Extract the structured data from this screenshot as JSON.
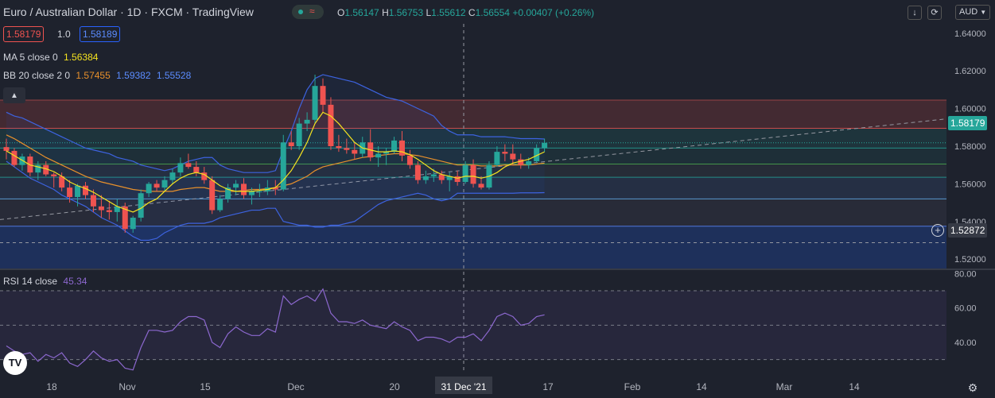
{
  "header": {
    "title": "Euro / Australian Dollar · 1D · FXCM · TradingView",
    "ohlc": {
      "o_label": "O",
      "o": "1.56147",
      "h_label": "H",
      "h": "1.56753",
      "l_label": "L",
      "l": "1.55612",
      "c_label": "C",
      "c": "1.56554",
      "change": "+0.00407 (+0.26%)"
    },
    "sell_price": "1.58179",
    "spread": "1.0",
    "buy_price": "1.58189",
    "currency_selector": "AUD"
  },
  "indicators": {
    "ma": {
      "label": "MA 5 close 0",
      "value": "1.56384"
    },
    "bb": {
      "label": "BB 20 close 2 0",
      "basis": "1.57455",
      "upper": "1.59382",
      "lower": "1.55528"
    },
    "rsi": {
      "label": "RSI 14 close",
      "value": "45.34"
    }
  },
  "price_axis": {
    "ticks": [
      1.64,
      1.62,
      1.6,
      1.58,
      1.56,
      1.54,
      1.52
    ],
    "tick_labels": [
      "1.64000",
      "1.62000",
      "1.60000",
      "1.58000",
      "1.56000",
      "1.54000",
      "1.52000"
    ],
    "current_price": "1.58179",
    "crosshair_price": "1.52872"
  },
  "rsi_axis": {
    "ticks": [
      80,
      60,
      40
    ],
    "tick_labels": [
      "80.00",
      "60.00",
      "40.00"
    ]
  },
  "time_axis": {
    "labels": [
      "18",
      "Nov",
      "15",
      "Dec",
      "20",
      "31 Dec '21",
      "17",
      "Feb",
      "14",
      "Mar",
      "14"
    ]
  },
  "colors": {
    "bg": "#1e222d",
    "up": "#26a69a",
    "down": "#ef5350",
    "ma": "#f5e31f",
    "bb_basis": "#e8902b",
    "bb_band": "#3d63e0",
    "rsi": "#8c68cf",
    "label_sell": "#ef5350",
    "label_buy": "#2962ff",
    "current_price": "#26a69a"
  },
  "chart_data": {
    "type": "candlestick",
    "price_range": [
      1.515,
      1.645
    ],
    "rsi_range": [
      22,
      82
    ],
    "candles": [
      [
        1.5795,
        1.584,
        1.573,
        1.5775
      ],
      [
        1.5775,
        1.579,
        1.569,
        1.57
      ],
      [
        1.57,
        1.576,
        1.567,
        1.5745
      ],
      [
        1.5745,
        1.576,
        1.564,
        1.566
      ],
      [
        1.566,
        1.572,
        1.562,
        1.57
      ],
      [
        1.57,
        1.572,
        1.564,
        1.565
      ],
      [
        1.565,
        1.566,
        1.558,
        1.564
      ],
      [
        1.564,
        1.566,
        1.556,
        1.558
      ],
      [
        1.558,
        1.562,
        1.55,
        1.553
      ],
      [
        1.553,
        1.56,
        1.548,
        1.559
      ],
      [
        1.559,
        1.561,
        1.552,
        1.554
      ],
      [
        1.554,
        1.557,
        1.545,
        1.548
      ],
      [
        1.548,
        1.554,
        1.542,
        1.546
      ],
      [
        1.546,
        1.551,
        1.541,
        1.545
      ],
      [
        1.545,
        1.552,
        1.54,
        1.548
      ],
      [
        1.548,
        1.55,
        1.534,
        1.536
      ],
      [
        1.536,
        1.543,
        1.534,
        1.542
      ],
      [
        1.542,
        1.557,
        1.54,
        1.555
      ],
      [
        1.555,
        1.561,
        1.553,
        1.56
      ],
      [
        1.56,
        1.562,
        1.556,
        1.558
      ],
      [
        1.558,
        1.564,
        1.556,
        1.562
      ],
      [
        1.562,
        1.568,
        1.56,
        1.566
      ],
      [
        1.566,
        1.574,
        1.564,
        1.571
      ],
      [
        1.571,
        1.576,
        1.568,
        1.569
      ],
      [
        1.569,
        1.572,
        1.564,
        1.566
      ],
      [
        1.566,
        1.569,
        1.56,
        1.562
      ],
      [
        1.562,
        1.564,
        1.544,
        1.546
      ],
      [
        1.546,
        1.554,
        1.545,
        1.552
      ],
      [
        1.552,
        1.56,
        1.55,
        1.558
      ],
      [
        1.558,
        1.562,
        1.554,
        1.56
      ],
      [
        1.56,
        1.563,
        1.552,
        1.554
      ],
      [
        1.554,
        1.558,
        1.549,
        1.556
      ],
      [
        1.556,
        1.56,
        1.553,
        1.556
      ],
      [
        1.556,
        1.562,
        1.554,
        1.558
      ],
      [
        1.558,
        1.562,
        1.554,
        1.557
      ],
      [
        1.557,
        1.586,
        1.556,
        1.582
      ],
      [
        1.582,
        1.588,
        1.578,
        1.58
      ],
      [
        1.58,
        1.595,
        1.578,
        1.592
      ],
      [
        1.592,
        1.598,
        1.588,
        1.594
      ],
      [
        1.594,
        1.618,
        1.592,
        1.612
      ],
      [
        1.612,
        1.616,
        1.598,
        1.602
      ],
      [
        1.602,
        1.606,
        1.578,
        1.58
      ],
      [
        1.58,
        1.586,
        1.577,
        1.579
      ],
      [
        1.579,
        1.584,
        1.576,
        1.578
      ],
      [
        1.578,
        1.582,
        1.573,
        1.576
      ],
      [
        1.576,
        1.585,
        1.574,
        1.582
      ],
      [
        1.582,
        1.589,
        1.572,
        1.574
      ],
      [
        1.574,
        1.58,
        1.569,
        1.576
      ],
      [
        1.576,
        1.579,
        1.57,
        1.577
      ],
      [
        1.577,
        1.585,
        1.576,
        1.583
      ],
      [
        1.583,
        1.588,
        1.572,
        1.575
      ],
      [
        1.575,
        1.578,
        1.568,
        1.57
      ],
      [
        1.57,
        1.572,
        1.56,
        1.562
      ],
      [
        1.562,
        1.567,
        1.56,
        1.564
      ],
      [
        1.564,
        1.568,
        1.561,
        1.565
      ],
      [
        1.565,
        1.567,
        1.56,
        1.562
      ],
      [
        1.562,
        1.566,
        1.556,
        1.564
      ],
      [
        1.564,
        1.567,
        1.559,
        1.561
      ],
      [
        1.561,
        1.572,
        1.56,
        1.57
      ],
      [
        1.57,
        1.573,
        1.558,
        1.56
      ],
      [
        1.56,
        1.564,
        1.557,
        1.558
      ],
      [
        1.558,
        1.572,
        1.557,
        1.57
      ],
      [
        1.57,
        1.58,
        1.569,
        1.577
      ],
      [
        1.577,
        1.581,
        1.572,
        1.576
      ],
      [
        1.576,
        1.581,
        1.57,
        1.573
      ],
      [
        1.573,
        1.576,
        1.568,
        1.57
      ],
      [
        1.57,
        1.574,
        1.568,
        1.572
      ],
      [
        1.572,
        1.581,
        1.571,
        1.579
      ],
      [
        1.579,
        1.584,
        1.577,
        1.5818
      ]
    ],
    "ma5": [
      1.5775,
      1.575,
      1.5725,
      1.57,
      1.569,
      1.568,
      1.5665,
      1.564,
      1.561,
      1.559,
      1.5575,
      1.5555,
      1.553,
      1.5505,
      1.548,
      1.5465,
      1.545,
      1.547,
      1.55,
      1.552,
      1.556,
      1.56,
      1.563,
      1.565,
      1.566,
      1.565,
      1.562,
      1.559,
      1.557,
      1.556,
      1.556,
      1.556,
      1.5565,
      1.557,
      1.558,
      1.562,
      1.567,
      1.574,
      1.582,
      1.592,
      1.598,
      1.596,
      1.592,
      1.587,
      1.582,
      1.579,
      1.578,
      1.577,
      1.577,
      1.5775,
      1.577,
      1.5755,
      1.573,
      1.57,
      1.567,
      1.565,
      1.564,
      1.563,
      1.564,
      1.564,
      1.563,
      1.564,
      1.566,
      1.569,
      1.571,
      1.572,
      1.573,
      1.575,
      1.577
    ],
    "bb_basis": [
      1.586,
      1.584,
      1.5815,
      1.579,
      1.5765,
      1.574,
      1.572,
      1.57,
      1.568,
      1.566,
      1.564,
      1.5625,
      1.561,
      1.56,
      1.559,
      1.558,
      1.557,
      1.5565,
      1.556,
      1.556,
      1.556,
      1.556,
      1.557,
      1.5575,
      1.558,
      1.558,
      1.557,
      1.556,
      1.556,
      1.556,
      1.5565,
      1.557,
      1.557,
      1.5575,
      1.558,
      1.559,
      1.56,
      1.562,
      1.564,
      1.567,
      1.569,
      1.57,
      1.571,
      1.572,
      1.573,
      1.574,
      1.5745,
      1.575,
      1.5755,
      1.576,
      1.576,
      1.5755,
      1.575,
      1.574,
      1.573,
      1.572,
      1.571,
      1.57,
      1.57,
      1.57,
      1.5695,
      1.5695,
      1.5695,
      1.57,
      1.57,
      1.57,
      1.57,
      1.5705,
      1.571
    ],
    "bb_upper": [
      1.598,
      1.596,
      1.595,
      1.593,
      1.591,
      1.589,
      1.587,
      1.585,
      1.583,
      1.581,
      1.579,
      1.578,
      1.577,
      1.576,
      1.574,
      1.573,
      1.572,
      1.57,
      1.569,
      1.568,
      1.567,
      1.568,
      1.57,
      1.572,
      1.573,
      1.574,
      1.574,
      1.57,
      1.568,
      1.567,
      1.566,
      1.566,
      1.566,
      1.566,
      1.567,
      1.578,
      1.588,
      1.6,
      1.61,
      1.616,
      1.618,
      1.617,
      1.616,
      1.615,
      1.614,
      1.612,
      1.61,
      1.608,
      1.606,
      1.605,
      1.604,
      1.602,
      1.6,
      1.598,
      1.596,
      1.591,
      1.588,
      1.586,
      1.586,
      1.586,
      1.585,
      1.585,
      1.585,
      1.585,
      1.5845,
      1.584,
      1.584,
      1.584,
      1.5838
    ],
    "bb_lower": [
      1.572,
      1.569,
      1.566,
      1.563,
      1.561,
      1.559,
      1.557,
      1.554,
      1.552,
      1.55,
      1.548,
      1.545,
      1.542,
      1.54,
      1.538,
      1.535,
      1.532,
      1.53,
      1.53,
      1.531,
      1.534,
      1.536,
      1.538,
      1.539,
      1.539,
      1.539,
      1.54,
      1.542,
      1.543,
      1.544,
      1.545,
      1.546,
      1.546,
      1.547,
      1.547,
      1.54,
      1.539,
      1.538,
      1.538,
      1.537,
      1.537,
      1.538,
      1.538,
      1.539,
      1.54,
      1.543,
      1.546,
      1.549,
      1.551,
      1.552,
      1.553,
      1.554,
      1.555,
      1.554,
      1.552,
      1.551,
      1.552,
      1.555,
      1.555,
      1.555,
      1.555,
      1.555,
      1.555,
      1.555,
      1.555,
      1.5552,
      1.5552,
      1.5552,
      1.5553
    ],
    "rsi": [
      38,
      35,
      33,
      34,
      29,
      33,
      31,
      34,
      28,
      26,
      30,
      35,
      31,
      29,
      30,
      25,
      24,
      37,
      47,
      47,
      46,
      47,
      52,
      55,
      55,
      53,
      40,
      37,
      45,
      49,
      46,
      44,
      44,
      48,
      46,
      67,
      62,
      65,
      67,
      64,
      71,
      57,
      52,
      52,
      51,
      53,
      50,
      49,
      48,
      52,
      49,
      47,
      41,
      43,
      43,
      42,
      40,
      43,
      43,
      45,
      41,
      47,
      55,
      57,
      55,
      50,
      51,
      55,
      56
    ]
  }
}
